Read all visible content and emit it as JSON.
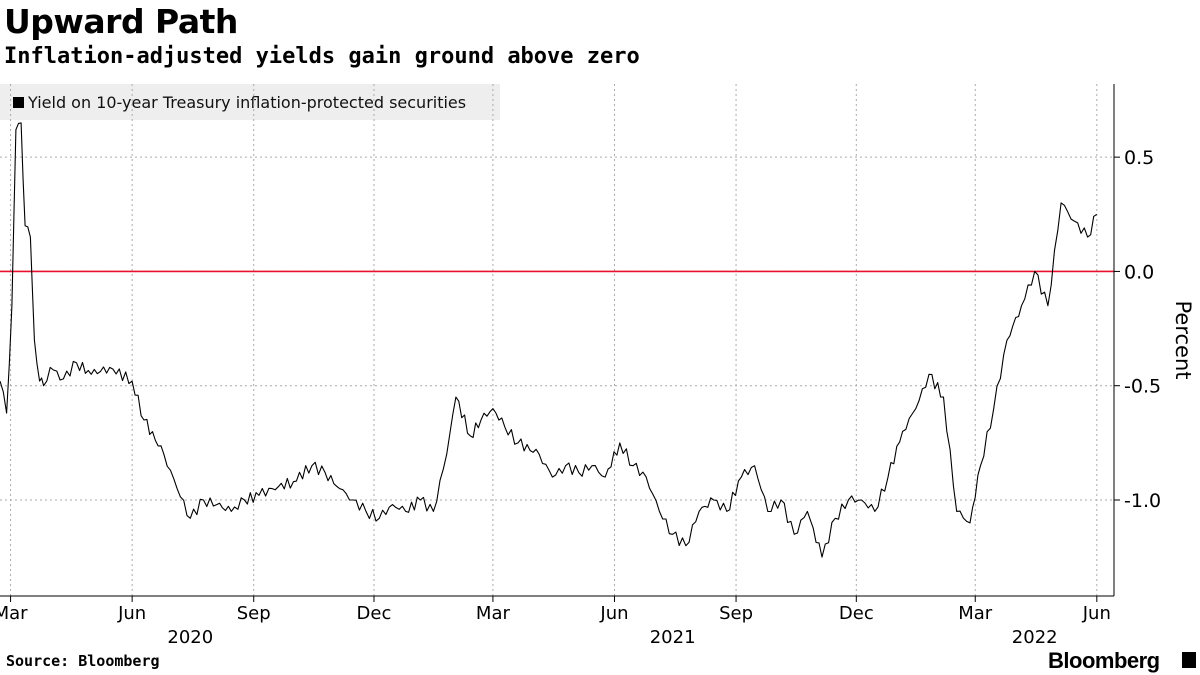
{
  "header": {
    "title": "Upward Path",
    "subtitle": "Inflation-adjusted yields gain ground above zero"
  },
  "legend": {
    "label": "Yield on 10-year Treasury inflation-protected securities"
  },
  "footer": {
    "source": "Source: Bloomberg",
    "brand": "Bloomberg"
  },
  "colors": {
    "series": "#000000",
    "zero_line": "#e8112d",
    "grid": "#aaaaaa",
    "legend_bg": "#eeeeee"
  },
  "chart_data": {
    "type": "line",
    "ylabel": "Percent",
    "ylim": [
      -1.42,
      0.82
    ],
    "yticks": [
      0.5,
      0.0,
      -0.5,
      -1.0
    ],
    "ytick_labels": [
      "0.5",
      "0.0",
      "-0.5",
      "-1.0"
    ],
    "xlim": [
      "2020-02-22",
      "2022-06-14"
    ],
    "xticks": [
      {
        "date": "2020-03-01",
        "label": "Mar"
      },
      {
        "date": "2020-06-01",
        "label": "Jun"
      },
      {
        "date": "2020-09-01",
        "label": "Sep"
      },
      {
        "date": "2020-12-01",
        "label": "Dec"
      },
      {
        "date": "2021-03-01",
        "label": "Mar"
      },
      {
        "date": "2021-06-01",
        "label": "Jun"
      },
      {
        "date": "2021-09-01",
        "label": "Sep"
      },
      {
        "date": "2021-12-01",
        "label": "Dec"
      },
      {
        "date": "2022-03-01",
        "label": "Mar"
      },
      {
        "date": "2022-06-01",
        "label": "Jun"
      }
    ],
    "year_labels": [
      {
        "date": "2020-07-15",
        "label": "2020"
      },
      {
        "date": "2021-07-15",
        "label": "2021"
      },
      {
        "date": "2022-04-15",
        "label": "2022"
      }
    ],
    "reference_line": {
      "y": 0.0
    },
    "grid": "vertical dashed at month ticks, horizontal dashed at y ticks",
    "legend_position": "top-left",
    "series": [
      {
        "name": "Yield on 10-year Treasury inflation-protected securities",
        "x": [
          "2020-02-22",
          "2020-02-27",
          "2020-03-02",
          "2020-03-05",
          "2020-03-09",
          "2020-03-12",
          "2020-03-16",
          "2020-03-19",
          "2020-03-23",
          "2020-03-26",
          "2020-03-31",
          "2020-04-10",
          "2020-04-20",
          "2020-05-01",
          "2020-05-15",
          "2020-06-01",
          "2020-06-10",
          "2020-06-25",
          "2020-07-05",
          "2020-07-15",
          "2020-07-25",
          "2020-08-04",
          "2020-08-15",
          "2020-08-25",
          "2020-09-05",
          "2020-09-15",
          "2020-10-01",
          "2020-10-15",
          "2020-10-25",
          "2020-11-05",
          "2020-11-15",
          "2020-11-25",
          "2020-12-05",
          "2020-12-15",
          "2020-12-25",
          "2021-01-05",
          "2021-01-15",
          "2021-01-25",
          "2021-02-01",
          "2021-02-12",
          "2021-02-20",
          "2021-03-01",
          "2021-03-10",
          "2021-03-20",
          "2021-04-05",
          "2021-04-15",
          "2021-04-25",
          "2021-05-05",
          "2021-05-15",
          "2021-05-25",
          "2021-06-05",
          "2021-06-15",
          "2021-06-25",
          "2021-07-05",
          "2021-07-15",
          "2021-07-25",
          "2021-08-04",
          "2021-08-15",
          "2021-08-25",
          "2021-09-05",
          "2021-09-15",
          "2021-09-25",
          "2021-10-05",
          "2021-10-15",
          "2021-10-25",
          "2021-11-05",
          "2021-11-15",
          "2021-11-25",
          "2021-12-05",
          "2021-12-15",
          "2021-12-25",
          "2022-01-05",
          "2022-01-15",
          "2022-01-25",
          "2022-02-05",
          "2022-02-15",
          "2022-02-25",
          "2022-03-05",
          "2022-03-15",
          "2022-03-25",
          "2022-04-05",
          "2022-04-15",
          "2022-04-25",
          "2022-05-05",
          "2022-05-15",
          "2022-05-25",
          "2022-06-01"
        ],
        "y": [
          -0.48,
          -0.62,
          -0.15,
          0.62,
          0.65,
          0.2,
          0.15,
          -0.3,
          -0.48,
          -0.5,
          -0.42,
          -0.47,
          -0.4,
          -0.45,
          -0.42,
          -0.48,
          -0.65,
          -0.8,
          -0.95,
          -1.08,
          -1.0,
          -1.02,
          -1.05,
          -1.0,
          -0.98,
          -0.95,
          -0.92,
          -0.85,
          -0.88,
          -0.95,
          -1.0,
          -1.05,
          -1.08,
          -1.02,
          -1.05,
          -1.0,
          -1.05,
          -0.8,
          -0.55,
          -0.72,
          -0.65,
          -0.6,
          -0.68,
          -0.75,
          -0.8,
          -0.9,
          -0.85,
          -0.88,
          -0.85,
          -0.9,
          -0.75,
          -0.85,
          -0.9,
          -1.05,
          -1.15,
          -1.2,
          -1.05,
          -1.0,
          -1.05,
          -0.9,
          -0.85,
          -1.05,
          -1.0,
          -1.15,
          -1.05,
          -1.25,
          -1.08,
          -1.0,
          -1.0,
          -1.05,
          -0.9,
          -0.7,
          -0.6,
          -0.45,
          -0.55,
          -1.05,
          -1.1,
          -0.85,
          -0.6,
          -0.3,
          -0.15,
          0.0,
          -0.15,
          0.3,
          0.22,
          0.15,
          0.25
        ]
      }
    ]
  }
}
